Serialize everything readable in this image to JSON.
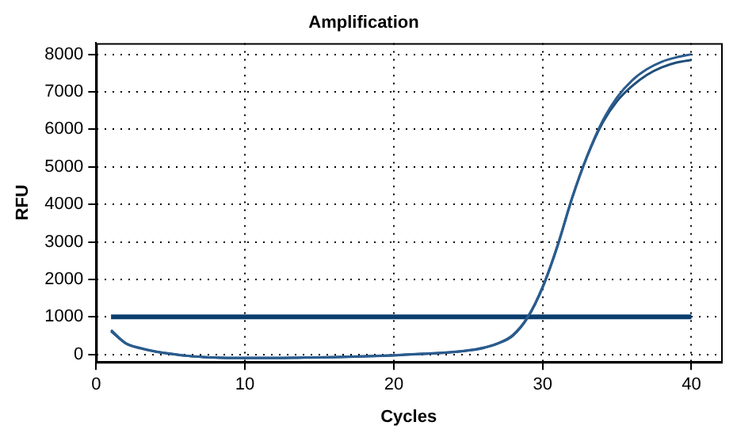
{
  "chart_data": {
    "type": "line",
    "title": "Amplification",
    "xlabel": "Cycles",
    "ylabel": "RFU",
    "x": [
      1,
      2,
      3,
      4,
      5,
      6,
      7,
      8,
      9,
      10,
      12,
      14,
      16,
      18,
      20,
      22,
      24,
      25,
      26,
      27,
      28,
      29,
      30,
      31,
      32,
      33,
      34,
      35,
      36,
      37,
      38,
      39,
      40
    ],
    "series": [
      {
        "color": "#2b5c8f",
        "values": [
          650,
          300,
          170,
          80,
          20,
          -30,
          -60,
          -80,
          -90,
          -90,
          -90,
          -80,
          -70,
          -50,
          -20,
          20,
          70,
          110,
          180,
          300,
          520,
          1000,
          1800,
          2900,
          4200,
          5300,
          6200,
          6850,
          7300,
          7600,
          7800,
          7920,
          8000
        ]
      },
      {
        "color": "#1f4e79",
        "values": [
          620,
          290,
          160,
          75,
          15,
          -35,
          -65,
          -85,
          -95,
          -95,
          -95,
          -85,
          -75,
          -55,
          -25,
          15,
          65,
          105,
          170,
          290,
          500,
          980,
          1780,
          2880,
          4180,
          5280,
          6150,
          6750,
          7150,
          7450,
          7650,
          7780,
          7850
        ]
      }
    ],
    "xlim": [
      0,
      42
    ],
    "xticks": [
      0,
      10,
      20,
      30,
      40
    ],
    "ylim": [
      -200,
      8300
    ],
    "yticks": [
      0,
      1000,
      2000,
      3000,
      4000,
      5000,
      6000,
      7000,
      8000
    ],
    "ref_lines": [
      {
        "axis": "y",
        "value": 1000,
        "color": "#0b3d6e"
      }
    ],
    "grid": true,
    "legend": false,
    "marker": "none",
    "line_style": "solid"
  }
}
